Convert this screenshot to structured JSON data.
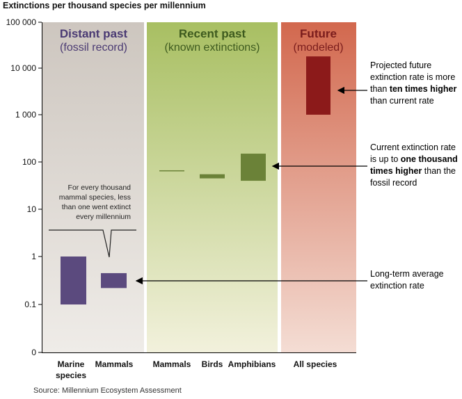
{
  "chart_data": {
    "type": "bar",
    "title": "Extinctions per thousand species per millennium",
    "y_scale": "log",
    "ylim": [
      0,
      100000
    ],
    "yticks": [
      "0",
      "0.1",
      "1",
      "10",
      "100",
      "1 000",
      "10 000",
      "100 000"
    ],
    "panels": [
      {
        "name": "Distant past",
        "subtitle": "(fossil record)",
        "color": "#4a3a73",
        "bg": "#ddd8d2"
      },
      {
        "name": "Recent past",
        "subtitle": "(known extinctions)",
        "color": "#3d5a1e",
        "bg": "#c4d28c"
      },
      {
        "name": "Future",
        "subtitle": "(modeled)",
        "color": "#7a1c1c",
        "bg": "#d9826a"
      }
    ],
    "categories": [
      {
        "label": "Marine species",
        "panel": 0,
        "low": 0.1,
        "high": 1
      },
      {
        "label": "Mammals",
        "panel": 0,
        "low": 0.22,
        "high": 0.45
      },
      {
        "label": "Mammals",
        "panel": 1,
        "low": 65,
        "high": 65
      },
      {
        "label": "Birds",
        "panel": 1,
        "low": 45,
        "high": 55
      },
      {
        "label": "Amphibians",
        "panel": 1,
        "low": 40,
        "high": 150
      },
      {
        "label": "All species",
        "panel": 2,
        "low": 1000,
        "high": 18000
      }
    ],
    "bar_colors": {
      "distant": "#5b4a7e",
      "recent": "#6b8238",
      "future": "#8c1a1a"
    },
    "annotations": {
      "bubble": "For every thousand mammal species, less than one went extinct every millennium",
      "future_note": {
        "a": "Projected future extinction rate is more than ",
        "b": "ten times higher",
        "c": " than current rate"
      },
      "current_note": {
        "a": "Current extinction rate is up to ",
        "b": "one thousand times higher",
        "c": " than the fossil record"
      },
      "longterm_note": "Long-term average extinction rate"
    }
  },
  "source": "Source: Millennium Ecosystem Assessment"
}
